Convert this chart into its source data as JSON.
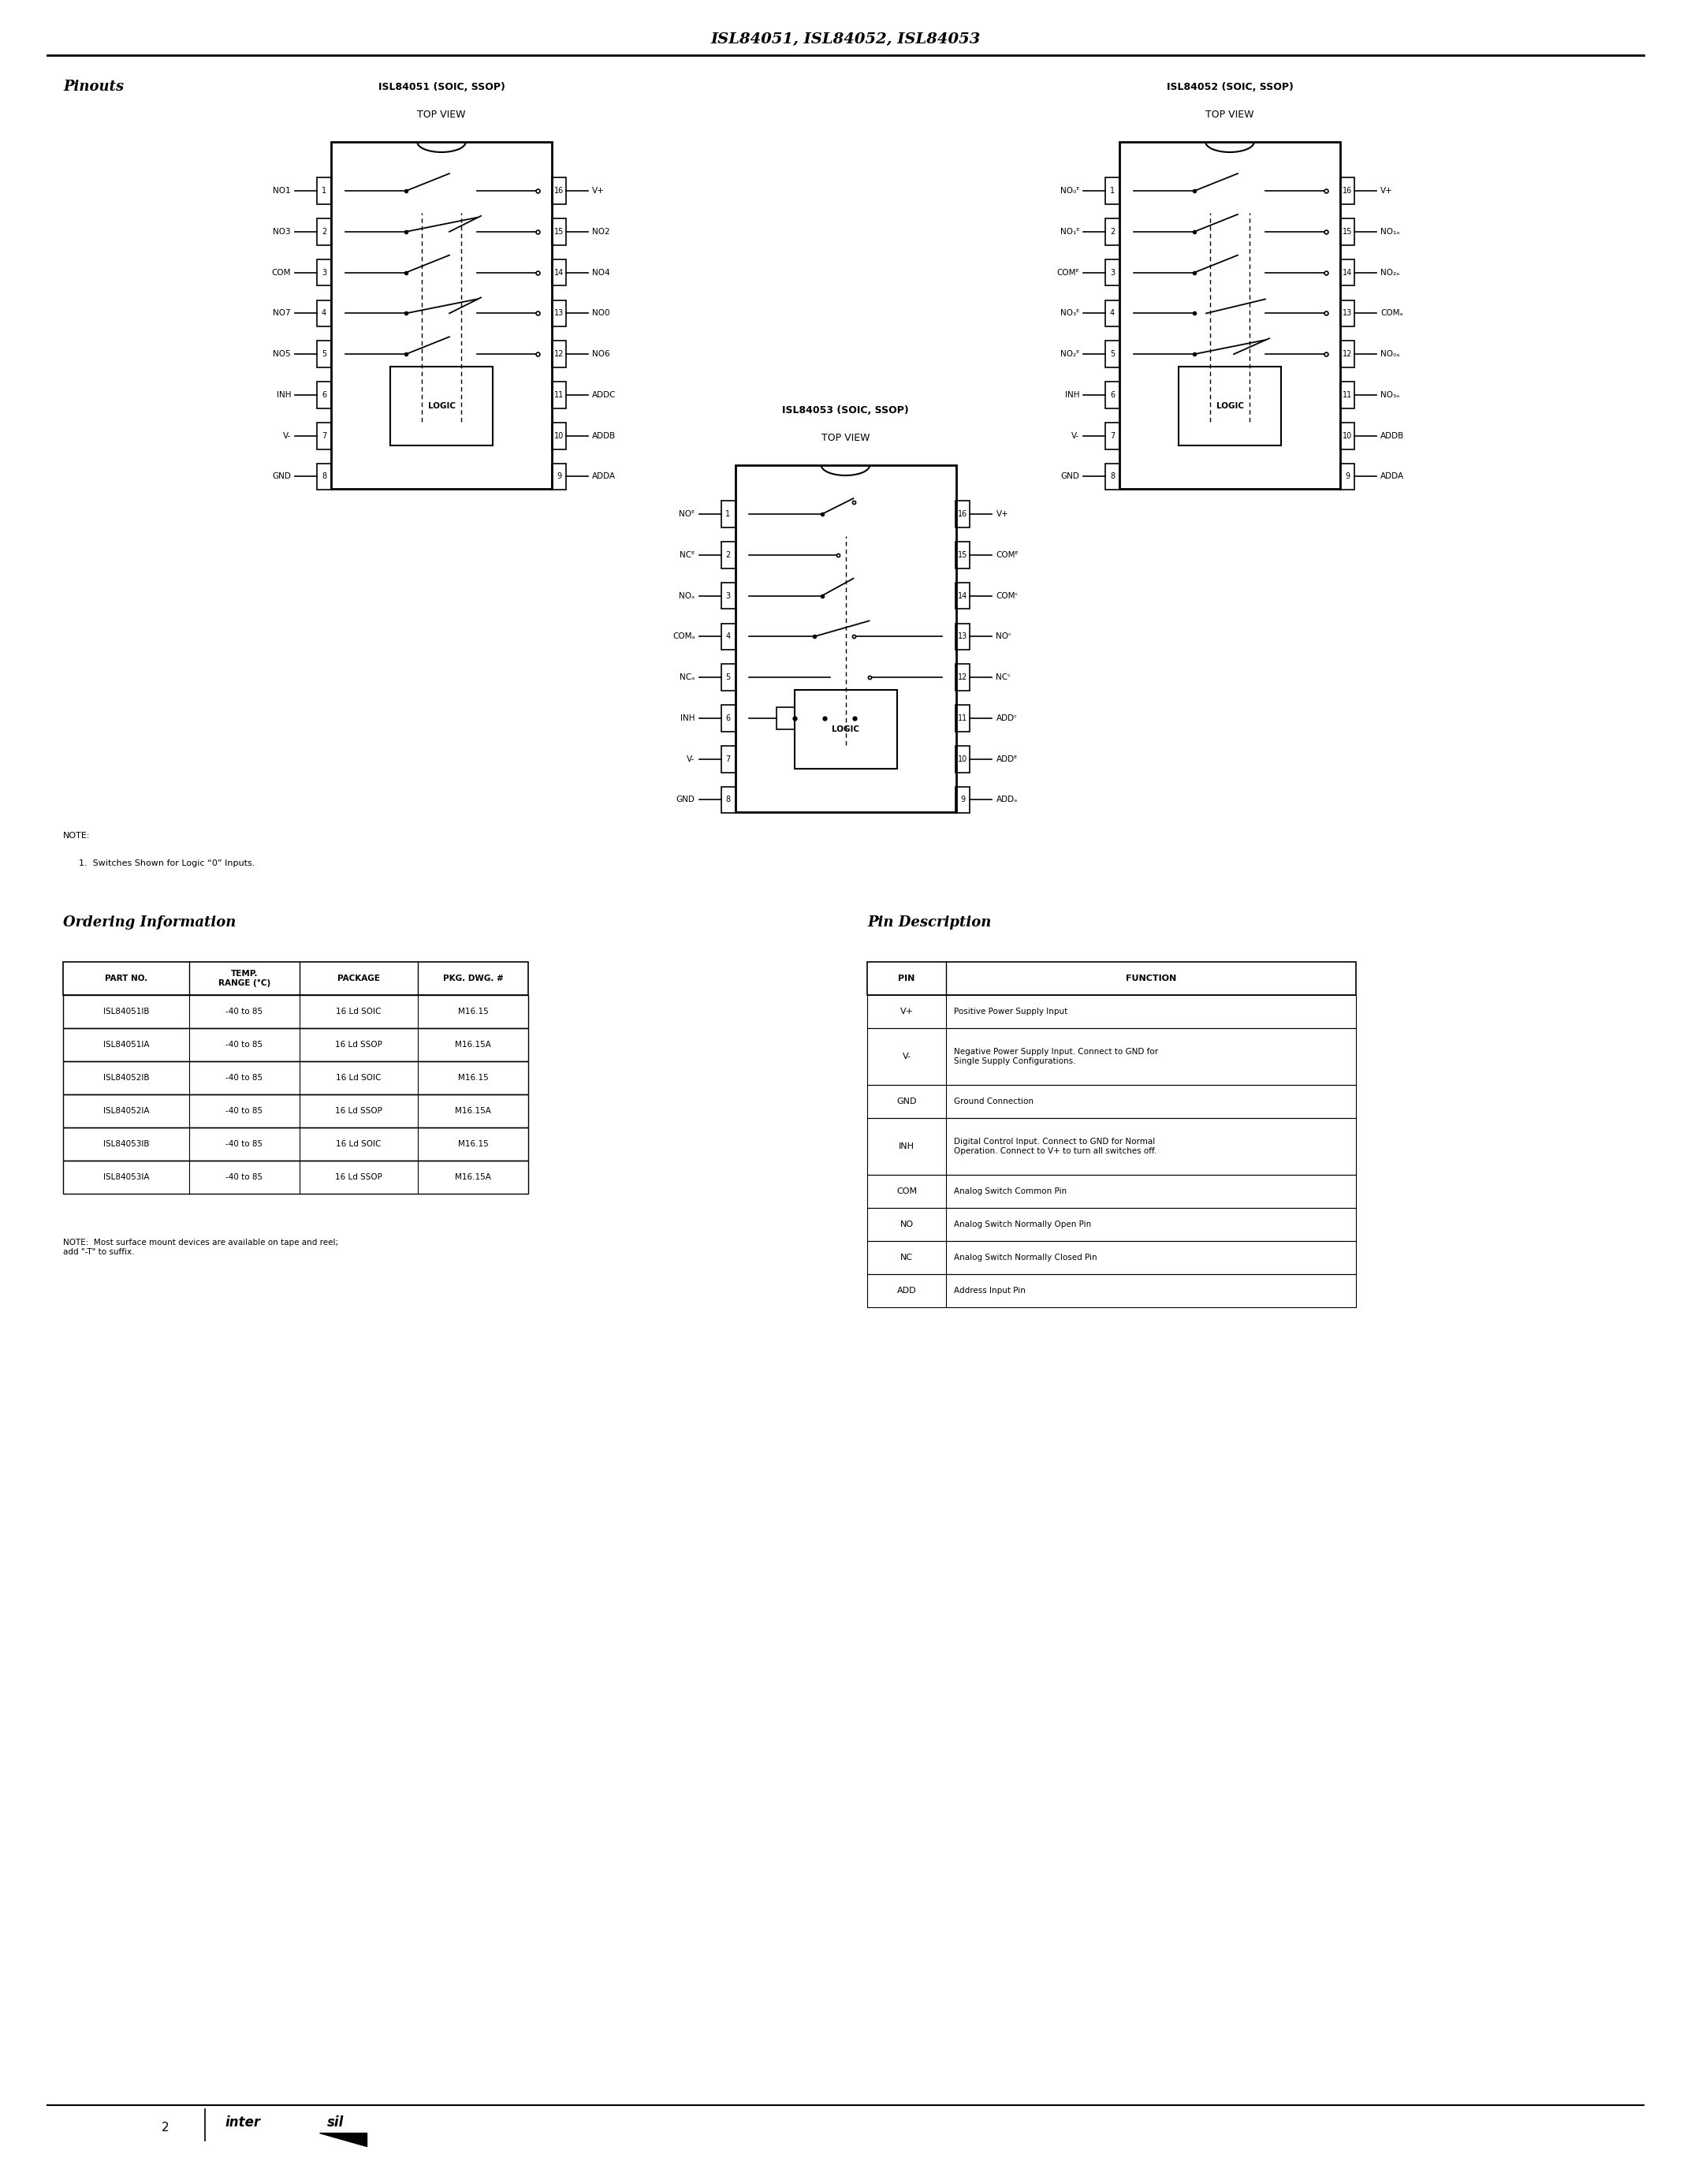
{
  "title": "ISL84051, ISL84052, ISL84053",
  "page_num": "2",
  "bg_color": "#ffffff",
  "text_color": "#000000",
  "pinouts_label": "Pinouts",
  "isl84051_title": "ISL84051 (SOIC, SSOP)",
  "isl84051_subtitle": "TOP VIEW",
  "isl84052_title": "ISL84052 (SOIC, SSOP)",
  "isl84052_subtitle": "TOP VIEW",
  "isl84053_title": "ISL84053 (SOIC, SSOP)",
  "isl84053_subtitle": "TOP VIEW",
  "note_text": "NOTE:\n  1.  Switches Shown for Logic \"0\" Inputs.",
  "ordering_title": "Ordering Information",
  "pin_desc_title": "Pin Description",
  "ordering_headers": [
    "PART NO.",
    "TEMP.\nRANGE (°C)",
    "PACKAGE",
    "PKG. DWG. #"
  ],
  "ordering_rows": [
    [
      "ISL84051IB",
      "-40 to 85",
      "16 Ld SOIC",
      "M16.15"
    ],
    [
      "ISL84051IA",
      "-40 to 85",
      "16 Ld SSOP",
      "M16.15A"
    ],
    [
      "ISL84052IB",
      "-40 to 85",
      "16 Ld SOIC",
      "M16.15"
    ],
    [
      "ISL84052IA",
      "-40 to 85",
      "16 Ld SSOP",
      "M16.15A"
    ],
    [
      "ISL84053IB",
      "-40 to 85",
      "16 Ld SOIC",
      "M16.15"
    ],
    [
      "ISL84053IA",
      "-40 to 85",
      "16 Ld SSOP",
      "M16.15A"
    ]
  ],
  "ordering_note": "NOTE:  Most surface mount devices are available on tape and reel;\nadd \"-T\" to suffix.",
  "pin_headers": [
    "PIN",
    "FUNCTION"
  ],
  "pin_rows": [
    [
      "V+",
      "Positive Power Supply Input"
    ],
    [
      "V-",
      "Negative Power Supply Input. Connect to GND for\nSingle Supply Configurations."
    ],
    [
      "GND",
      "Ground Connection"
    ],
    [
      "INH",
      "Digital Control Input. Connect to GND for Normal\nOperation. Connect to V+ to turn all switches off."
    ],
    [
      "COM",
      "Analog Switch Common Pin"
    ],
    [
      "NO",
      "Analog Switch Normally Open Pin"
    ],
    [
      "NC",
      "Analog Switch Normally Closed Pin"
    ],
    [
      "ADD",
      "Address Input Pin"
    ]
  ]
}
